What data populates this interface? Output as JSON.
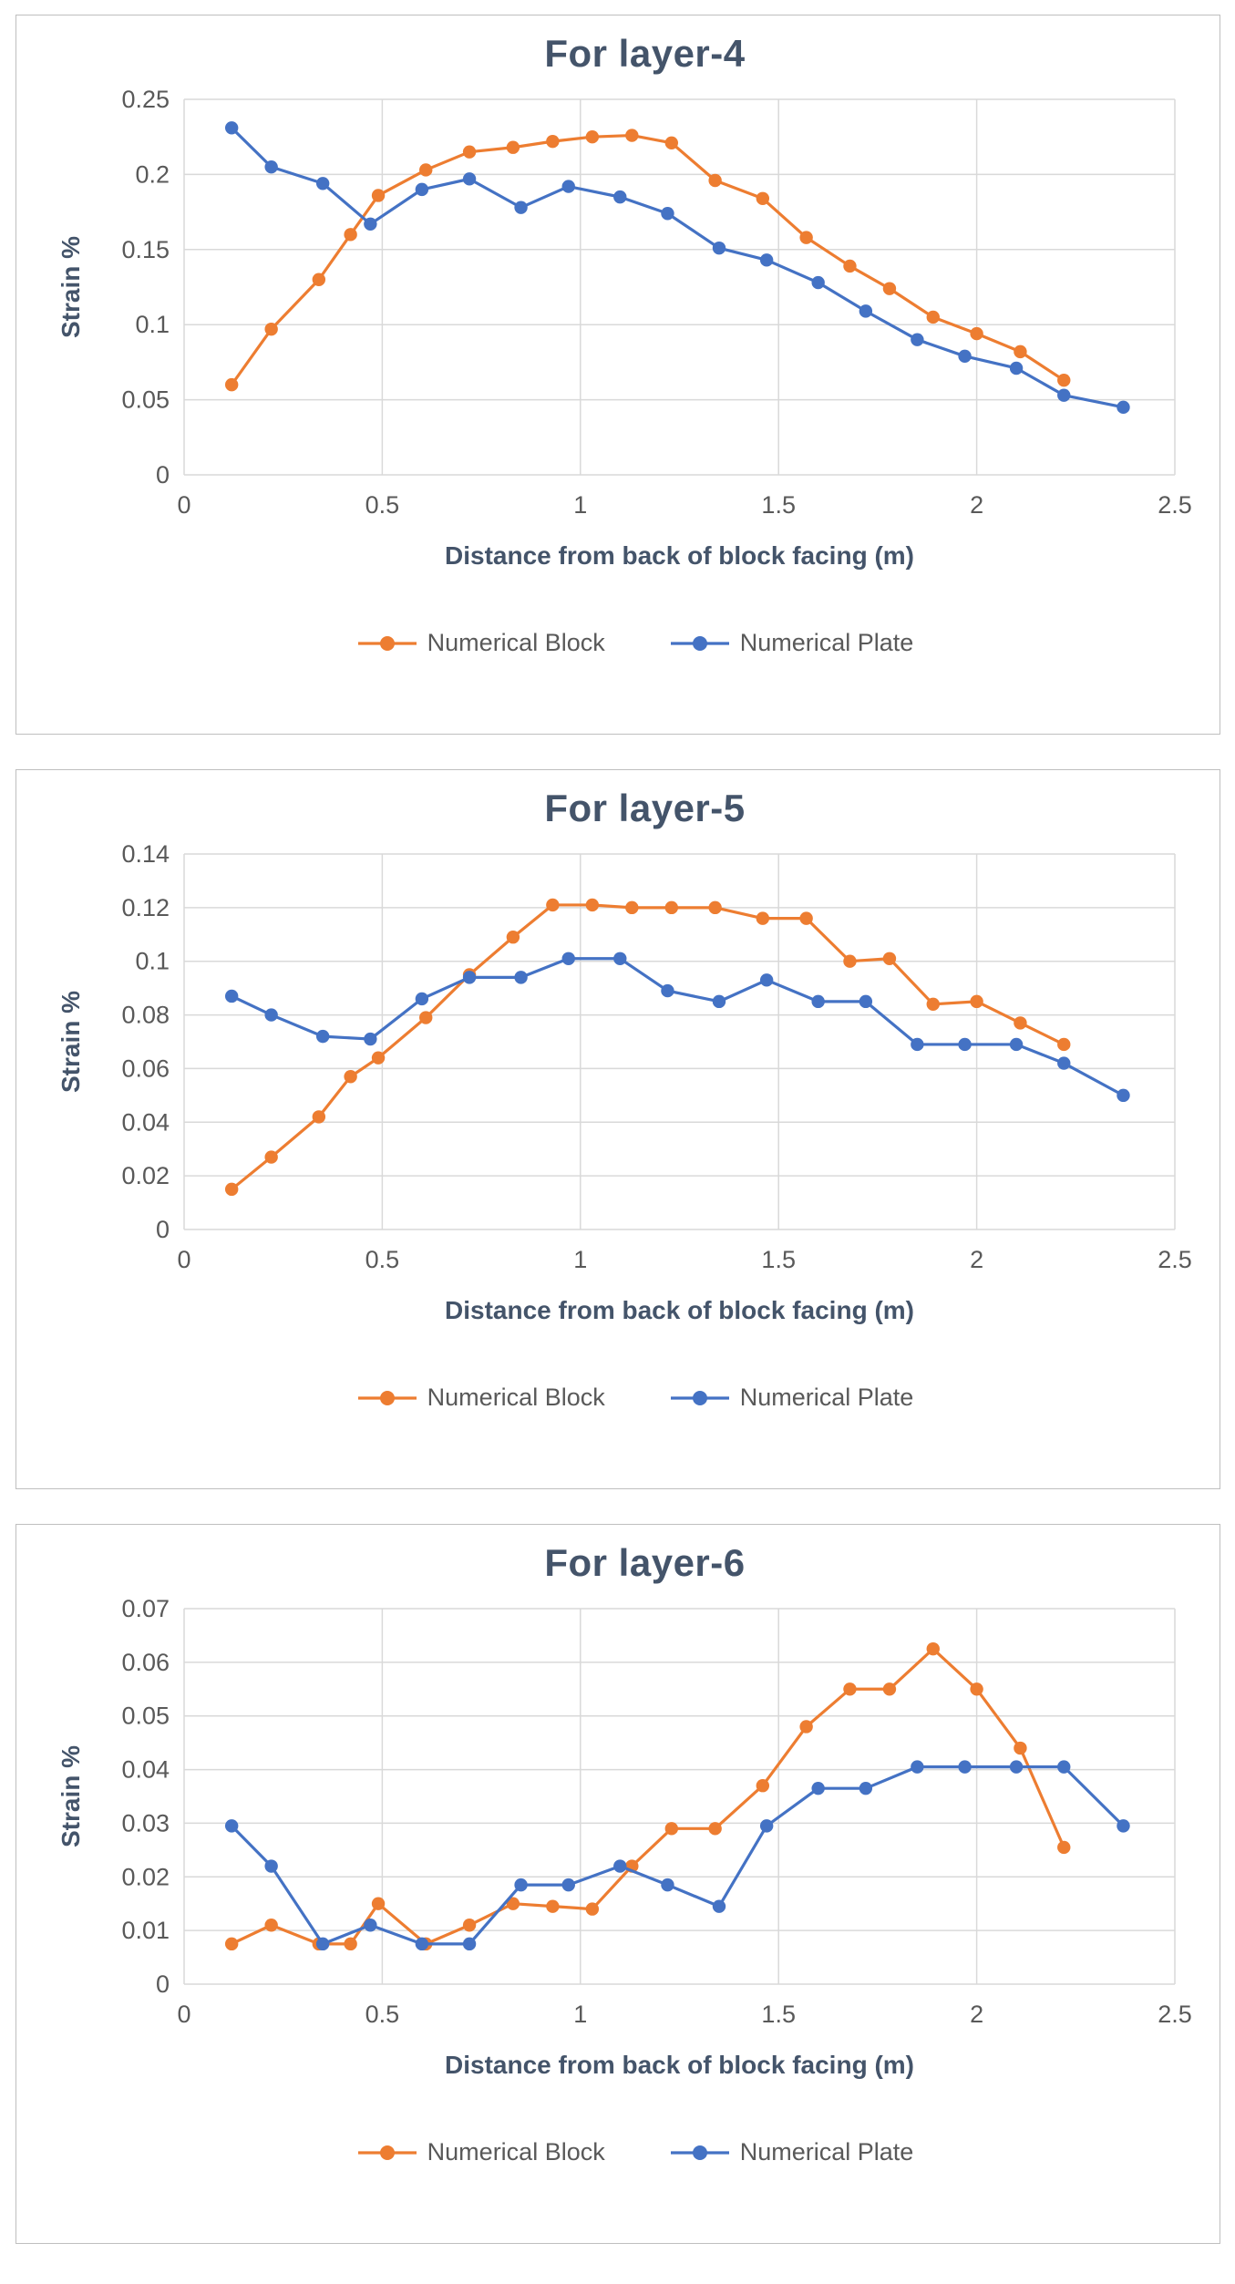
{
  "page": {
    "background": "#ffffff"
  },
  "colors": {
    "grid": "#D9D9D9",
    "axis_text": "#595959",
    "title_text": "#44546A",
    "series_block": "#ED7D31",
    "series_plate": "#4472C4"
  },
  "chart_data": [
    {
      "type": "line",
      "title": "For layer-4",
      "xlabel": "Distance from back of block facing (m)",
      "ylabel": "Strain %",
      "xlim": [
        0,
        2.5
      ],
      "ylim": [
        0,
        0.25
      ],
      "xticks": [
        "0",
        "0.5",
        "1",
        "1.5",
        "2",
        "2.5"
      ],
      "yticks": [
        "0",
        "0.05",
        "0.1",
        "0.15",
        "0.2",
        "0.25"
      ],
      "grid": true,
      "legend_position": "bottom",
      "series": [
        {
          "name": "Numerical Block",
          "color": "#ED7D31",
          "x": [
            0.12,
            0.22,
            0.34,
            0.42,
            0.49,
            0.61,
            0.72,
            0.83,
            0.93,
            1.03,
            1.13,
            1.23,
            1.34,
            1.46,
            1.57,
            1.68,
            1.78,
            1.89,
            2.0,
            2.11,
            2.22
          ],
          "y": [
            0.06,
            0.097,
            0.13,
            0.16,
            0.186,
            0.203,
            0.215,
            0.218,
            0.222,
            0.225,
            0.226,
            0.221,
            0.196,
            0.184,
            0.158,
            0.139,
            0.124,
            0.105,
            0.094,
            0.082,
            0.063
          ]
        },
        {
          "name": "Numerical Plate",
          "color": "#4472C4",
          "x": [
            0.12,
            0.22,
            0.35,
            0.47,
            0.6,
            0.72,
            0.85,
            0.97,
            1.1,
            1.22,
            1.35,
            1.47,
            1.6,
            1.72,
            1.85,
            1.97,
            2.1,
            2.22,
            2.37
          ],
          "y": [
            0.231,
            0.205,
            0.194,
            0.167,
            0.19,
            0.197,
            0.178,
            0.192,
            0.185,
            0.174,
            0.151,
            0.143,
            0.128,
            0.109,
            0.09,
            0.079,
            0.071,
            0.053,
            0.045
          ]
        }
      ]
    },
    {
      "type": "line",
      "title": "For layer-5",
      "xlabel": "Distance from back of block facing (m)",
      "ylabel": "Strain %",
      "xlim": [
        0,
        2.5
      ],
      "ylim": [
        0,
        0.14
      ],
      "xticks": [
        "0",
        "0.5",
        "1",
        "1.5",
        "2",
        "2.5"
      ],
      "yticks": [
        "0",
        "0.02",
        "0.04",
        "0.06",
        "0.08",
        "0.1",
        "0.12",
        "0.14"
      ],
      "grid": true,
      "legend_position": "bottom",
      "series": [
        {
          "name": "Numerical Block",
          "color": "#ED7D31",
          "x": [
            0.12,
            0.22,
            0.34,
            0.42,
            0.49,
            0.61,
            0.72,
            0.83,
            0.93,
            1.03,
            1.13,
            1.23,
            1.34,
            1.46,
            1.57,
            1.68,
            1.78,
            1.89,
            2.0,
            2.11,
            2.22
          ],
          "y": [
            0.015,
            0.027,
            0.042,
            0.057,
            0.064,
            0.079,
            0.095,
            0.109,
            0.121,
            0.121,
            0.12,
            0.12,
            0.12,
            0.116,
            0.116,
            0.1,
            0.101,
            0.084,
            0.085,
            0.077,
            0.069
          ]
        },
        {
          "name": "Numerical Plate",
          "color": "#4472C4",
          "x": [
            0.12,
            0.22,
            0.35,
            0.47,
            0.6,
            0.72,
            0.85,
            0.97,
            1.1,
            1.22,
            1.35,
            1.47,
            1.6,
            1.72,
            1.85,
            1.97,
            2.1,
            2.22,
            2.37
          ],
          "y": [
            0.087,
            0.08,
            0.072,
            0.071,
            0.086,
            0.094,
            0.094,
            0.101,
            0.101,
            0.089,
            0.085,
            0.093,
            0.085,
            0.085,
            0.069,
            0.069,
            0.069,
            0.062,
            0.05
          ]
        }
      ]
    },
    {
      "type": "line",
      "title": "For layer-6",
      "xlabel": "Distance from back of block facing (m)",
      "ylabel": "Strain %",
      "xlim": [
        0,
        2.5
      ],
      "ylim": [
        0,
        0.07
      ],
      "xticks": [
        "0",
        "0.5",
        "1",
        "1.5",
        "2",
        "2.5"
      ],
      "yticks": [
        "0",
        "0.01",
        "0.02",
        "0.03",
        "0.04",
        "0.05",
        "0.06",
        "0.07"
      ],
      "grid": true,
      "legend_position": "bottom",
      "series": [
        {
          "name": "Numerical Block",
          "color": "#ED7D31",
          "x": [
            0.12,
            0.22,
            0.34,
            0.42,
            0.49,
            0.61,
            0.72,
            0.83,
            0.93,
            1.03,
            1.13,
            1.23,
            1.34,
            1.46,
            1.57,
            1.68,
            1.78,
            1.89,
            2.0,
            2.11,
            2.22
          ],
          "y": [
            0.0075,
            0.011,
            0.0075,
            0.0075,
            0.015,
            0.0075,
            0.011,
            0.015,
            0.0145,
            0.014,
            0.022,
            0.029,
            0.029,
            0.037,
            0.048,
            0.055,
            0.055,
            0.0625,
            0.055,
            0.044,
            0.0255
          ]
        },
        {
          "name": "Numerical Plate",
          "color": "#4472C4",
          "x": [
            0.12,
            0.22,
            0.35,
            0.47,
            0.6,
            0.72,
            0.85,
            0.97,
            1.1,
            1.22,
            1.35,
            1.47,
            1.6,
            1.72,
            1.85,
            1.97,
            2.1,
            2.22,
            2.37
          ],
          "y": [
            0.0295,
            0.022,
            0.0075,
            0.011,
            0.0075,
            0.0075,
            0.0185,
            0.0185,
            0.022,
            0.0185,
            0.0145,
            0.0295,
            0.0365,
            0.0365,
            0.0405,
            0.0405,
            0.0405,
            0.0405,
            0.0295
          ]
        }
      ]
    }
  ]
}
